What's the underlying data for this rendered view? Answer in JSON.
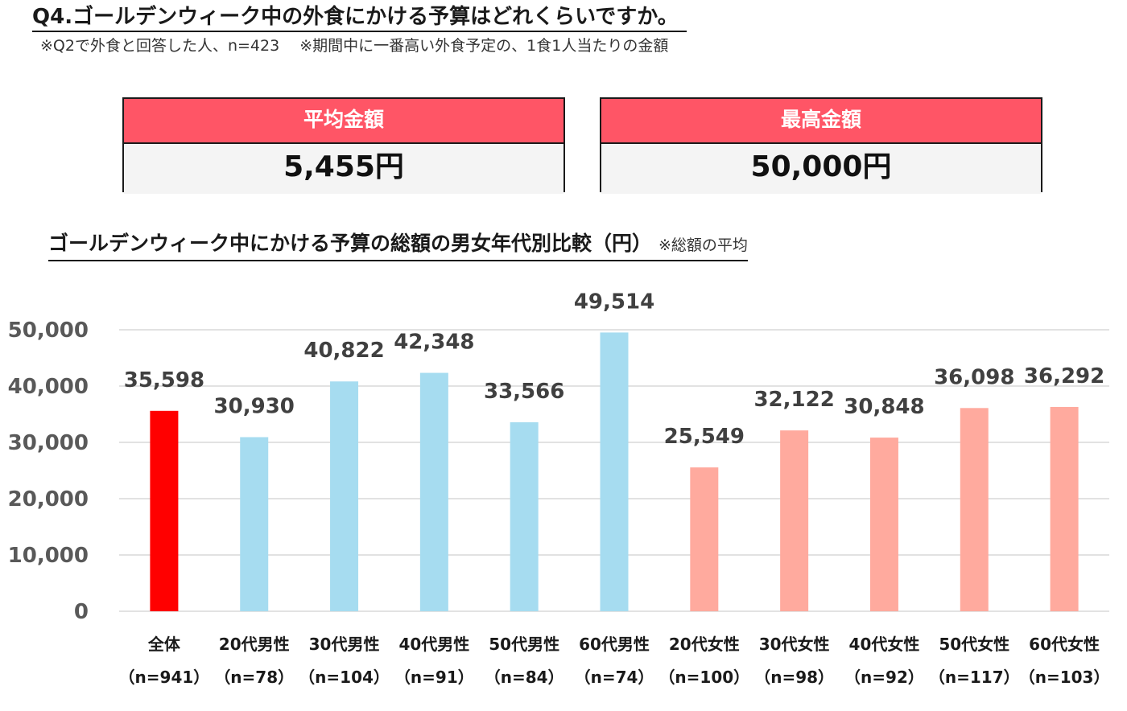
{
  "header": {
    "title": "Q4.ゴールデンウィーク中の外食にかける予算はどれくらいですか。",
    "note": "※Q2で外食と回答した人、n=423　 ※期間中に一番高い外食予定の、1食1人当たりの金額"
  },
  "summary": {
    "average": {
      "label": "平均金額",
      "value": "5,455円"
    },
    "maximum": {
      "label": "最高金額",
      "value": "50,000円"
    }
  },
  "chart_heading": {
    "title": "ゴールデンウィーク中にかける予算の総額の男女年代別比較（円）",
    "note": "※総額の平均"
  },
  "colors": {
    "total": "#ff0000",
    "male": "#a6dcf0",
    "female": "#ffaa9e",
    "header_red": "#ff5566"
  },
  "chart_data": {
    "type": "bar",
    "categories": [
      "全体",
      "20代男性",
      "30代男性",
      "40代男性",
      "50代男性",
      "60代男性",
      "20代女性",
      "30代女性",
      "40代女性",
      "50代女性",
      "60代女性"
    ],
    "sample_sizes": [
      "（n=941）",
      "（n=78）",
      "（n=104）",
      "（n=91）",
      "（n=84）",
      "（n=74）",
      "（n=100）",
      "（n=98）",
      "（n=92）",
      "（n=117）",
      "（n=103）"
    ],
    "values": [
      35598,
      30930,
      40822,
      42348,
      33566,
      49514,
      25549,
      32122,
      30848,
      36098,
      36292
    ],
    "value_labels": [
      "35,598",
      "30,930",
      "40,822",
      "42,348",
      "33,566",
      "49,514",
      "25,549",
      "32,122",
      "30,848",
      "36,098",
      "36,292"
    ],
    "groups": [
      "total",
      "male",
      "male",
      "male",
      "male",
      "male",
      "female",
      "female",
      "female",
      "female",
      "female"
    ],
    "yticks": [
      0,
      10000,
      20000,
      30000,
      40000,
      50000
    ],
    "ytick_labels": [
      "0",
      "10,000",
      "20,000",
      "30,000",
      "40,000",
      "50,000"
    ],
    "ylim": [
      0,
      50000
    ],
    "grid": true
  }
}
